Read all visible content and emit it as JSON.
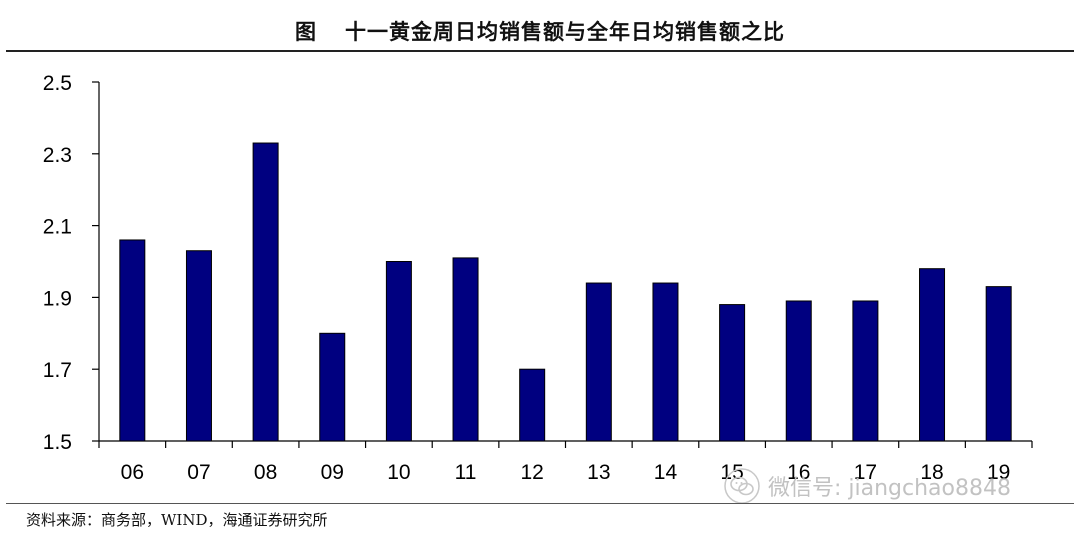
{
  "header": {
    "prefix": "图",
    "title": "十一黄金周日均销售额与全年日均销售额之比"
  },
  "chart_data": {
    "type": "bar",
    "categories": [
      "06",
      "07",
      "08",
      "09",
      "10",
      "11",
      "12",
      "13",
      "14",
      "15",
      "16",
      "17",
      "18",
      "19"
    ],
    "values": [
      2.06,
      2.03,
      2.33,
      1.8,
      2.0,
      2.01,
      1.7,
      1.94,
      1.94,
      1.88,
      1.89,
      1.89,
      1.98,
      1.93
    ],
    "ylim": [
      1.5,
      2.5
    ],
    "yticks": [
      "1.5",
      "1.7",
      "1.9",
      "2.1",
      "2.3",
      "2.5"
    ],
    "ytick_values": [
      1.5,
      1.7,
      1.9,
      2.1,
      2.3,
      2.5
    ],
    "bar_color": "#000080",
    "grid": false,
    "legend": "none"
  },
  "footer": {
    "source": "资料来源：商务部，WIND，海通证券研究所"
  },
  "watermark": {
    "text": "微信号: jiangchao8848",
    "icon": "wechat-icon"
  }
}
